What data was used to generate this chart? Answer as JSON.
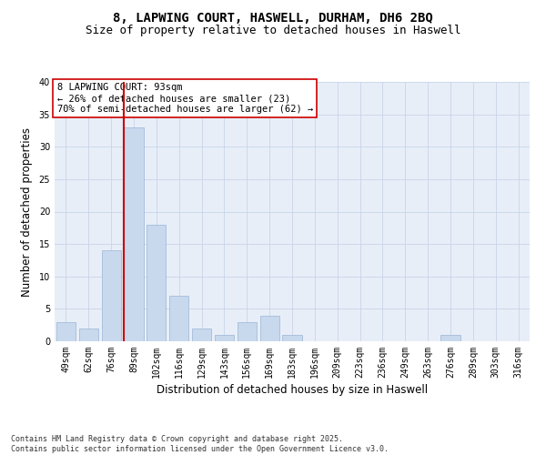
{
  "title_line1": "8, LAPWING COURT, HASWELL, DURHAM, DH6 2BQ",
  "title_line2": "Size of property relative to detached houses in Haswell",
  "xlabel": "Distribution of detached houses by size in Haswell",
  "ylabel": "Number of detached properties",
  "bar_color": "#c8d9ee",
  "bar_edge_color": "#9ab5d5",
  "vline_color": "#cc0000",
  "vline_x_idx": 3,
  "categories": [
    "49sqm",
    "62sqm",
    "76sqm",
    "89sqm",
    "102sqm",
    "116sqm",
    "129sqm",
    "143sqm",
    "156sqm",
    "169sqm",
    "183sqm",
    "196sqm",
    "209sqm",
    "223sqm",
    "236sqm",
    "249sqm",
    "263sqm",
    "276sqm",
    "289sqm",
    "303sqm",
    "316sqm"
  ],
  "values": [
    3,
    2,
    14,
    33,
    18,
    7,
    2,
    1,
    3,
    4,
    1,
    0,
    0,
    0,
    0,
    0,
    0,
    1,
    0,
    0,
    0
  ],
  "ylim": [
    0,
    40
  ],
  "yticks": [
    0,
    5,
    10,
    15,
    20,
    25,
    30,
    35,
    40
  ],
  "grid_color": "#c8d4e8",
  "background_color": "#e8eef8",
  "annotation_text": "8 LAPWING COURT: 93sqm\n← 26% of detached houses are smaller (23)\n70% of semi-detached houses are larger (62) →",
  "footer": "Contains HM Land Registry data © Crown copyright and database right 2025.\nContains public sector information licensed under the Open Government Licence v3.0.",
  "title1_fontsize": 10,
  "title2_fontsize": 9,
  "axis_label_fontsize": 8.5,
  "tick_fontsize": 7,
  "annotation_fontsize": 7.5,
  "footer_fontsize": 6
}
